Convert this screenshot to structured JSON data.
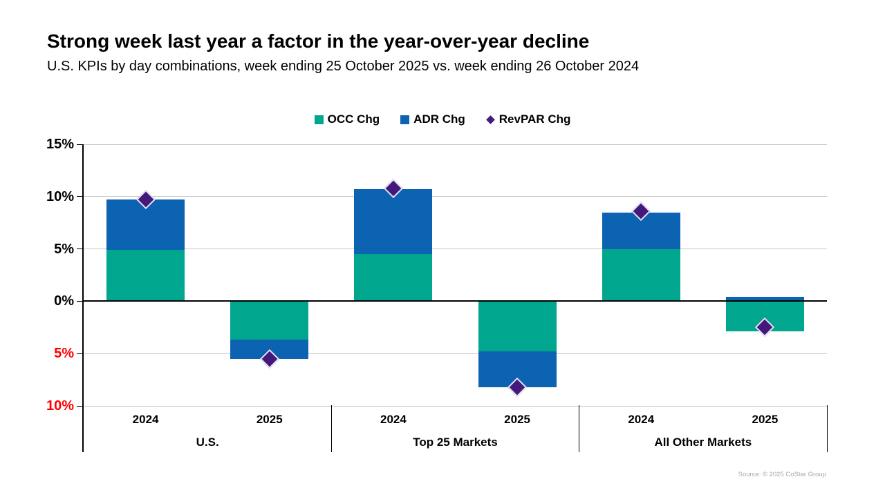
{
  "header": {
    "title": "Strong week last year a factor in the year-over-year decline",
    "subtitle": "U.S. KPIs by day combinations, week ending 25 October 2025 vs. week ending 26 October 2024"
  },
  "colors": {
    "occ": "#00A78E",
    "adr": "#0B63B1",
    "revpar": "#43197B",
    "revpar_outline": "#E8E4F4",
    "negative_tick_label": "#FF0000",
    "positive_tick_label": "#000000",
    "gridline": "#C8C8C8",
    "axis": "#000000",
    "source_text": "#A6A6A6"
  },
  "legend": {
    "items": [
      {
        "label": "OCC Chg",
        "marker": "square",
        "color": "#00A78E"
      },
      {
        "label": "ADR Chg",
        "marker": "square",
        "color": "#0B63B1"
      },
      {
        "label": "RevPAR Chg",
        "marker": "diamond",
        "color": "#43197B"
      }
    ]
  },
  "chart_data": {
    "type": "bar",
    "stacked": true,
    "orientation": "vertical",
    "title": "Strong week last year a factor in the year-over-year decline",
    "subtitle": "U.S. KPIs by day combinations, week ending 25 October 2025 vs. week ending 26 October 2024",
    "groups": [
      "U.S.",
      "Top 25 Markets",
      "All Other Markets"
    ],
    "categories": [
      "2024",
      "2025",
      "2024",
      "2025",
      "2024",
      "2025"
    ],
    "series": [
      {
        "name": "OCC Chg",
        "render": "bar",
        "color": "#00A78E",
        "values": [
          4.9,
          -3.7,
          4.5,
          -4.8,
          5.0,
          -2.9
        ]
      },
      {
        "name": "ADR Chg",
        "render": "bar",
        "color": "#0B63B1",
        "values": [
          4.8,
          -1.8,
          6.2,
          -3.4,
          3.5,
          0.4
        ]
      },
      {
        "name": "RevPAR Chg",
        "render": "diamond-marker",
        "color": "#43197B",
        "values": [
          9.7,
          -5.5,
          10.8,
          -8.2,
          8.6,
          -2.5
        ]
      }
    ],
    "ylim": [
      -10,
      15
    ],
    "ytick_step": 5,
    "yticks": [
      {
        "value": 15,
        "label": "15%",
        "color": "#000000"
      },
      {
        "value": 10,
        "label": "10%",
        "color": "#000000"
      },
      {
        "value": 5,
        "label": "5%",
        "color": "#000000"
      },
      {
        "value": 0,
        "label": "0%",
        "color": "#000000"
      },
      {
        "value": -5,
        "label": "5%",
        "color": "#FF0000"
      },
      {
        "value": -10,
        "label": "10%",
        "color": "#FF0000"
      }
    ],
    "grid": true,
    "legend_position": "top"
  },
  "footer": {
    "source": "Source: © 2025 CoStar Group"
  }
}
